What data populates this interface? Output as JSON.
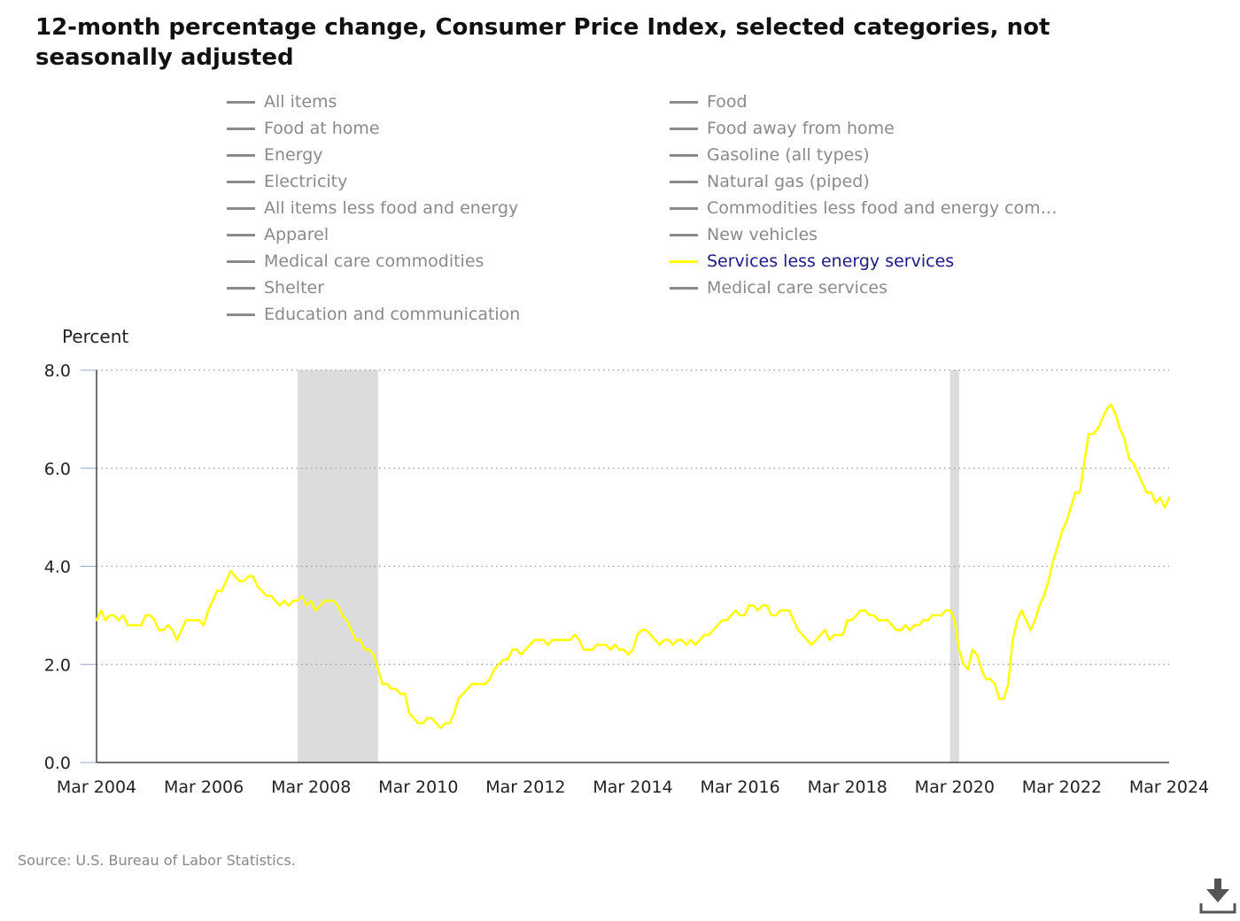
{
  "title": "12-month percentage change, Consumer Price Index, selected categories, not seasonally adjusted",
  "legend": [
    {
      "label": "All items",
      "active": false
    },
    {
      "label": "Food",
      "active": false
    },
    {
      "label": "Food at home",
      "active": false
    },
    {
      "label": "Food away from home",
      "active": false
    },
    {
      "label": "Energy",
      "active": false
    },
    {
      "label": "Gasoline (all types)",
      "active": false
    },
    {
      "label": "Electricity",
      "active": false
    },
    {
      "label": "Natural gas (piped)",
      "active": false
    },
    {
      "label": "All items less food and energy",
      "active": false
    },
    {
      "label": "Commodities less food and energy com…",
      "active": false
    },
    {
      "label": "Apparel",
      "active": false
    },
    {
      "label": "New vehicles",
      "active": false
    },
    {
      "label": "Medical care commodities",
      "active": false
    },
    {
      "label": "Services less energy services",
      "active": true
    },
    {
      "label": "Shelter",
      "active": false
    },
    {
      "label": "Medical care services",
      "active": false
    },
    {
      "label": "Education and communication",
      "active": false
    }
  ],
  "unit_label": "Percent",
  "source": "Source: U.S. Bureau of Labor Statistics.",
  "download_icon": "download-icon",
  "colors": {
    "active_series": "#ffff00",
    "inactive_legend": "#8a8a8a",
    "active_legend_text": "#1a1a8c",
    "recession_band": "#dcdcdc"
  },
  "chart_data": {
    "type": "line",
    "title": "12-month percentage change, Consumer Price Index, selected categories, not seasonally adjusted",
    "ylabel": "Percent",
    "xlabel": "",
    "ylim": [
      0,
      8
    ],
    "yticks": [
      "0.0",
      "2.0",
      "4.0",
      "6.0",
      "8.0"
    ],
    "xticks": [
      "Mar 2004",
      "Mar 2006",
      "Mar 2008",
      "Mar 2010",
      "Mar 2012",
      "Mar 2014",
      "Mar 2016",
      "Mar 2018",
      "Mar 2020",
      "Mar 2022",
      "Mar 2024"
    ],
    "xlim": [
      "2004-03",
      "2024-03"
    ],
    "grid": "horizontal dotted",
    "recessions": [
      {
        "start": "2007-12",
        "end": "2009-06"
      },
      {
        "start": "2020-02",
        "end": "2020-04"
      }
    ],
    "series": [
      {
        "name": "Services less energy services",
        "color": "#ffff00",
        "points": [
          [
            "2004-03",
            2.9
          ],
          [
            "2004-04",
            3.1
          ],
          [
            "2004-05",
            2.9
          ],
          [
            "2004-06",
            3.0
          ],
          [
            "2004-07",
            3.0
          ],
          [
            "2004-08",
            2.9
          ],
          [
            "2004-09",
            3.0
          ],
          [
            "2004-10",
            2.8
          ],
          [
            "2004-11",
            2.8
          ],
          [
            "2004-12",
            2.8
          ],
          [
            "2005-01",
            2.8
          ],
          [
            "2005-02",
            3.0
          ],
          [
            "2005-03",
            3.0
          ],
          [
            "2005-04",
            2.9
          ],
          [
            "2005-05",
            2.7
          ],
          [
            "2005-06",
            2.7
          ],
          [
            "2005-07",
            2.8
          ],
          [
            "2005-08",
            2.7
          ],
          [
            "2005-09",
            2.5
          ],
          [
            "2005-10",
            2.7
          ],
          [
            "2005-11",
            2.9
          ],
          [
            "2005-12",
            2.9
          ],
          [
            "2006-01",
            2.9
          ],
          [
            "2006-02",
            2.9
          ],
          [
            "2006-03",
            2.8
          ],
          [
            "2006-04",
            3.1
          ],
          [
            "2006-05",
            3.3
          ],
          [
            "2006-06",
            3.5
          ],
          [
            "2006-07",
            3.5
          ],
          [
            "2006-08",
            3.7
          ],
          [
            "2006-09",
            3.9
          ],
          [
            "2006-10",
            3.8
          ],
          [
            "2006-11",
            3.7
          ],
          [
            "2006-12",
            3.7
          ],
          [
            "2007-01",
            3.8
          ],
          [
            "2007-02",
            3.8
          ],
          [
            "2007-03",
            3.6
          ],
          [
            "2007-04",
            3.5
          ],
          [
            "2007-05",
            3.4
          ],
          [
            "2007-06",
            3.4
          ],
          [
            "2007-07",
            3.3
          ],
          [
            "2007-08",
            3.2
          ],
          [
            "2007-09",
            3.3
          ],
          [
            "2007-10",
            3.2
          ],
          [
            "2007-11",
            3.3
          ],
          [
            "2007-12",
            3.3
          ],
          [
            "2008-01",
            3.4
          ],
          [
            "2008-02",
            3.2
          ],
          [
            "2008-03",
            3.3
          ],
          [
            "2008-04",
            3.1
          ],
          [
            "2008-05",
            3.2
          ],
          [
            "2008-06",
            3.3
          ],
          [
            "2008-07",
            3.3
          ],
          [
            "2008-08",
            3.3
          ],
          [
            "2008-09",
            3.2
          ],
          [
            "2008-10",
            3.0
          ],
          [
            "2008-11",
            2.9
          ],
          [
            "2008-12",
            2.7
          ],
          [
            "2009-01",
            2.5
          ],
          [
            "2009-02",
            2.5
          ],
          [
            "2009-03",
            2.3
          ],
          [
            "2009-04",
            2.3
          ],
          [
            "2009-05",
            2.2
          ],
          [
            "2009-06",
            1.9
          ],
          [
            "2009-07",
            1.6
          ],
          [
            "2009-08",
            1.6
          ],
          [
            "2009-09",
            1.5
          ],
          [
            "2009-10",
            1.5
          ],
          [
            "2009-11",
            1.4
          ],
          [
            "2009-12",
            1.4
          ],
          [
            "2010-01",
            1.0
          ],
          [
            "2010-02",
            0.9
          ],
          [
            "2010-03",
            0.8
          ],
          [
            "2010-04",
            0.8
          ],
          [
            "2010-05",
            0.9
          ],
          [
            "2010-06",
            0.9
          ],
          [
            "2010-07",
            0.8
          ],
          [
            "2010-08",
            0.7
          ],
          [
            "2010-09",
            0.8
          ],
          [
            "2010-10",
            0.8
          ],
          [
            "2010-11",
            1.0
          ],
          [
            "2010-12",
            1.3
          ],
          [
            "2011-01",
            1.4
          ],
          [
            "2011-02",
            1.5
          ],
          [
            "2011-03",
            1.6
          ],
          [
            "2011-04",
            1.6
          ],
          [
            "2011-05",
            1.6
          ],
          [
            "2011-06",
            1.6
          ],
          [
            "2011-07",
            1.7
          ],
          [
            "2011-08",
            1.9
          ],
          [
            "2011-09",
            2.0
          ],
          [
            "2011-10",
            2.1
          ],
          [
            "2011-11",
            2.1
          ],
          [
            "2011-12",
            2.3
          ],
          [
            "2012-01",
            2.3
          ],
          [
            "2012-02",
            2.2
          ],
          [
            "2012-03",
            2.3
          ],
          [
            "2012-04",
            2.4
          ],
          [
            "2012-05",
            2.5
          ],
          [
            "2012-06",
            2.5
          ],
          [
            "2012-07",
            2.5
          ],
          [
            "2012-08",
            2.4
          ],
          [
            "2012-09",
            2.5
          ],
          [
            "2012-10",
            2.5
          ],
          [
            "2012-11",
            2.5
          ],
          [
            "2012-12",
            2.5
          ],
          [
            "2013-01",
            2.5
          ],
          [
            "2013-02",
            2.6
          ],
          [
            "2013-03",
            2.5
          ],
          [
            "2013-04",
            2.3
          ],
          [
            "2013-05",
            2.3
          ],
          [
            "2013-06",
            2.3
          ],
          [
            "2013-07",
            2.4
          ],
          [
            "2013-08",
            2.4
          ],
          [
            "2013-09",
            2.4
          ],
          [
            "2013-10",
            2.3
          ],
          [
            "2013-11",
            2.4
          ],
          [
            "2013-12",
            2.3
          ],
          [
            "2014-01",
            2.3
          ],
          [
            "2014-02",
            2.2
          ],
          [
            "2014-03",
            2.3
          ],
          [
            "2014-04",
            2.6
          ],
          [
            "2014-05",
            2.7
          ],
          [
            "2014-06",
            2.7
          ],
          [
            "2014-07",
            2.6
          ],
          [
            "2014-08",
            2.5
          ],
          [
            "2014-09",
            2.4
          ],
          [
            "2014-10",
            2.5
          ],
          [
            "2014-11",
            2.5
          ],
          [
            "2014-12",
            2.4
          ],
          [
            "2015-01",
            2.5
          ],
          [
            "2015-02",
            2.5
          ],
          [
            "2015-03",
            2.4
          ],
          [
            "2015-04",
            2.5
          ],
          [
            "2015-05",
            2.4
          ],
          [
            "2015-06",
            2.5
          ],
          [
            "2015-07",
            2.6
          ],
          [
            "2015-08",
            2.6
          ],
          [
            "2015-09",
            2.7
          ],
          [
            "2015-10",
            2.8
          ],
          [
            "2015-11",
            2.9
          ],
          [
            "2015-12",
            2.9
          ],
          [
            "2016-01",
            3.0
          ],
          [
            "2016-02",
            3.1
          ],
          [
            "2016-03",
            3.0
          ],
          [
            "2016-04",
            3.0
          ],
          [
            "2016-05",
            3.2
          ],
          [
            "2016-06",
            3.2
          ],
          [
            "2016-07",
            3.1
          ],
          [
            "2016-08",
            3.2
          ],
          [
            "2016-09",
            3.2
          ],
          [
            "2016-10",
            3.0
          ],
          [
            "2016-11",
            3.0
          ],
          [
            "2016-12",
            3.1
          ],
          [
            "2017-01",
            3.1
          ],
          [
            "2017-02",
            3.1
          ],
          [
            "2017-03",
            2.9
          ],
          [
            "2017-04",
            2.7
          ],
          [
            "2017-05",
            2.6
          ],
          [
            "2017-06",
            2.5
          ],
          [
            "2017-07",
            2.4
          ],
          [
            "2017-08",
            2.5
          ],
          [
            "2017-09",
            2.6
          ],
          [
            "2017-10",
            2.7
          ],
          [
            "2017-11",
            2.5
          ],
          [
            "2017-12",
            2.6
          ],
          [
            "2018-01",
            2.6
          ],
          [
            "2018-02",
            2.6
          ],
          [
            "2018-03",
            2.9
          ],
          [
            "2018-04",
            2.9
          ],
          [
            "2018-05",
            3.0
          ],
          [
            "2018-06",
            3.1
          ],
          [
            "2018-07",
            3.1
          ],
          [
            "2018-08",
            3.0
          ],
          [
            "2018-09",
            3.0
          ],
          [
            "2018-10",
            2.9
          ],
          [
            "2018-11",
            2.9
          ],
          [
            "2018-12",
            2.9
          ],
          [
            "2019-01",
            2.8
          ],
          [
            "2019-02",
            2.7
          ],
          [
            "2019-03",
            2.7
          ],
          [
            "2019-04",
            2.8
          ],
          [
            "2019-05",
            2.7
          ],
          [
            "2019-06",
            2.8
          ],
          [
            "2019-07",
            2.8
          ],
          [
            "2019-08",
            2.9
          ],
          [
            "2019-09",
            2.9
          ],
          [
            "2019-10",
            3.0
          ],
          [
            "2019-11",
            3.0
          ],
          [
            "2019-12",
            3.0
          ],
          [
            "2020-01",
            3.1
          ],
          [
            "2020-02",
            3.1
          ],
          [
            "2020-03",
            2.9
          ],
          [
            "2020-04",
            2.3
          ],
          [
            "2020-05",
            2.0
          ],
          [
            "2020-06",
            1.9
          ],
          [
            "2020-07",
            2.3
          ],
          [
            "2020-08",
            2.2
          ],
          [
            "2020-09",
            1.9
          ],
          [
            "2020-10",
            1.7
          ],
          [
            "2020-11",
            1.7
          ],
          [
            "2020-12",
            1.6
          ],
          [
            "2021-01",
            1.3
          ],
          [
            "2021-02",
            1.3
          ],
          [
            "2021-03",
            1.6
          ],
          [
            "2021-04",
            2.5
          ],
          [
            "2021-05",
            2.9
          ],
          [
            "2021-06",
            3.1
          ],
          [
            "2021-07",
            2.9
          ],
          [
            "2021-08",
            2.7
          ],
          [
            "2021-09",
            2.9
          ],
          [
            "2021-10",
            3.2
          ],
          [
            "2021-11",
            3.4
          ],
          [
            "2021-12",
            3.7
          ],
          [
            "2022-01",
            4.1
          ],
          [
            "2022-02",
            4.4
          ],
          [
            "2022-03",
            4.7
          ],
          [
            "2022-04",
            4.9
          ],
          [
            "2022-05",
            5.2
          ],
          [
            "2022-06",
            5.5
          ],
          [
            "2022-07",
            5.5
          ],
          [
            "2022-08",
            6.1
          ],
          [
            "2022-09",
            6.7
          ],
          [
            "2022-10",
            6.7
          ],
          [
            "2022-11",
            6.8
          ],
          [
            "2022-12",
            7.0
          ],
          [
            "2023-01",
            7.2
          ],
          [
            "2023-02",
            7.3
          ],
          [
            "2023-03",
            7.1
          ],
          [
            "2023-04",
            6.8
          ],
          [
            "2023-05",
            6.6
          ],
          [
            "2023-06",
            6.2
          ],
          [
            "2023-07",
            6.1
          ],
          [
            "2023-08",
            5.9
          ],
          [
            "2023-09",
            5.7
          ],
          [
            "2023-10",
            5.5
          ],
          [
            "2023-11",
            5.5
          ],
          [
            "2023-12",
            5.3
          ],
          [
            "2024-01",
            5.4
          ],
          [
            "2024-02",
            5.2
          ],
          [
            "2024-03",
            5.4
          ]
        ]
      }
    ]
  }
}
